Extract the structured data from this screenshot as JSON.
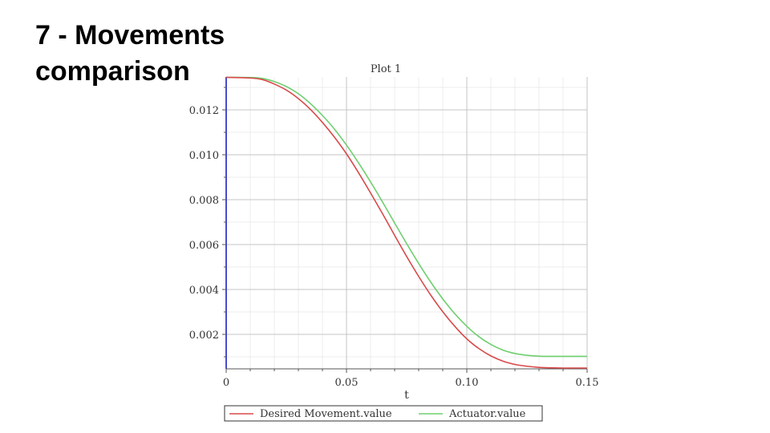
{
  "slide": {
    "title": "7 - Movements comparison"
  },
  "chart_data": {
    "type": "line",
    "title": "Plot 1",
    "xlabel": "t",
    "ylabel": "",
    "xlim": [
      0,
      0.15
    ],
    "ylim": [
      0.0005,
      0.01345
    ],
    "xticks": [
      0,
      0.05,
      0.1,
      0.15
    ],
    "xtick_labels": [
      "0",
      "0.05",
      "0.10",
      "0.15"
    ],
    "yticks": [
      0.002,
      0.004,
      0.006,
      0.008,
      0.01,
      0.012
    ],
    "ytick_labels": [
      "0.002",
      "0.004",
      "0.006",
      "0.008",
      "0.010",
      "0.012"
    ],
    "grid": true,
    "legend_position": "bottom",
    "series": [
      {
        "name": "Desired Movement.value",
        "color": "#d94a4a",
        "x": [
          0,
          0.01,
          0.015,
          0.02,
          0.025,
          0.03,
          0.035,
          0.04,
          0.045,
          0.05,
          0.055,
          0.06,
          0.065,
          0.07,
          0.075,
          0.08,
          0.085,
          0.09,
          0.095,
          0.1,
          0.105,
          0.11,
          0.115,
          0.12,
          0.125,
          0.13,
          0.135,
          0.14,
          0.145,
          0.15
        ],
        "y": [
          0.01345,
          0.01342,
          0.01335,
          0.01315,
          0.01288,
          0.0125,
          0.01202,
          0.01144,
          0.01078,
          0.01004,
          0.0092,
          0.0083,
          0.00737,
          0.00641,
          0.00547,
          0.00458,
          0.00375,
          0.00301,
          0.00236,
          0.0018,
          0.00137,
          0.00104,
          0.00081,
          0.00066,
          0.00058,
          0.00053,
          0.00051,
          0.0005,
          0.0005,
          0.0005
        ]
      },
      {
        "name": "Actuator.value",
        "color": "#6fcf6f",
        "x": [
          0,
          0.01,
          0.015,
          0.02,
          0.025,
          0.03,
          0.035,
          0.04,
          0.045,
          0.05,
          0.055,
          0.06,
          0.065,
          0.07,
          0.075,
          0.08,
          0.085,
          0.09,
          0.095,
          0.1,
          0.105,
          0.11,
          0.115,
          0.12,
          0.125,
          0.13,
          0.135,
          0.14,
          0.145,
          0.15
        ],
        "y": [
          0.01345,
          0.01344,
          0.0134,
          0.01326,
          0.01304,
          0.01272,
          0.01228,
          0.01175,
          0.01114,
          0.01043,
          0.00964,
          0.00879,
          0.00789,
          0.00696,
          0.00604,
          0.00516,
          0.00433,
          0.00358,
          0.00292,
          0.00236,
          0.0019,
          0.00155,
          0.0013,
          0.00115,
          0.00107,
          0.00103,
          0.00102,
          0.00102,
          0.00102,
          0.00102
        ]
      }
    ]
  }
}
